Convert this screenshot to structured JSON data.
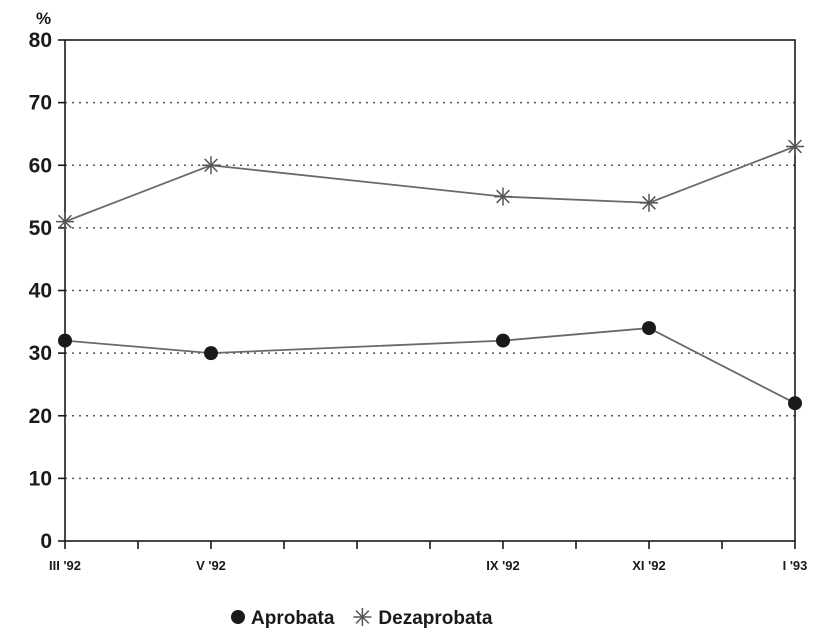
{
  "chart_data": {
    "type": "line",
    "y_unit": "%",
    "ylim": [
      0,
      80
    ],
    "yticks": [
      0,
      10,
      20,
      30,
      40,
      50,
      60,
      70,
      80
    ],
    "x_domain": [
      "1992-03",
      "1993-01"
    ],
    "x_ticks": [
      {
        "date": "1992-03",
        "label": "III '92"
      },
      {
        "date": "1992-04",
        "label": ""
      },
      {
        "date": "1992-05",
        "label": "V '92"
      },
      {
        "date": "1992-06",
        "label": ""
      },
      {
        "date": "1992-07",
        "label": ""
      },
      {
        "date": "1992-08",
        "label": ""
      },
      {
        "date": "1992-09",
        "label": "IX '92"
      },
      {
        "date": "1992-10",
        "label": ""
      },
      {
        "date": "1992-11",
        "label": "XI '92"
      },
      {
        "date": "1992-12",
        "label": ""
      },
      {
        "date": "1993-01",
        "label": "I '93"
      }
    ],
    "grid": "horizontal-dotted",
    "legend": "bottom-center",
    "series": [
      {
        "name": "Aprobata",
        "marker": "circle",
        "x": [
          "1992-03",
          "1992-05",
          "1992-09",
          "1992-11",
          "1993-01"
        ],
        "values": [
          32,
          30,
          32,
          34,
          22
        ]
      },
      {
        "name": "Dezaprobata",
        "marker": "asterisk",
        "x": [
          "1992-03",
          "1992-05",
          "1992-09",
          "1992-11",
          "1993-01"
        ],
        "values": [
          51,
          60,
          55,
          54,
          63
        ]
      }
    ]
  }
}
